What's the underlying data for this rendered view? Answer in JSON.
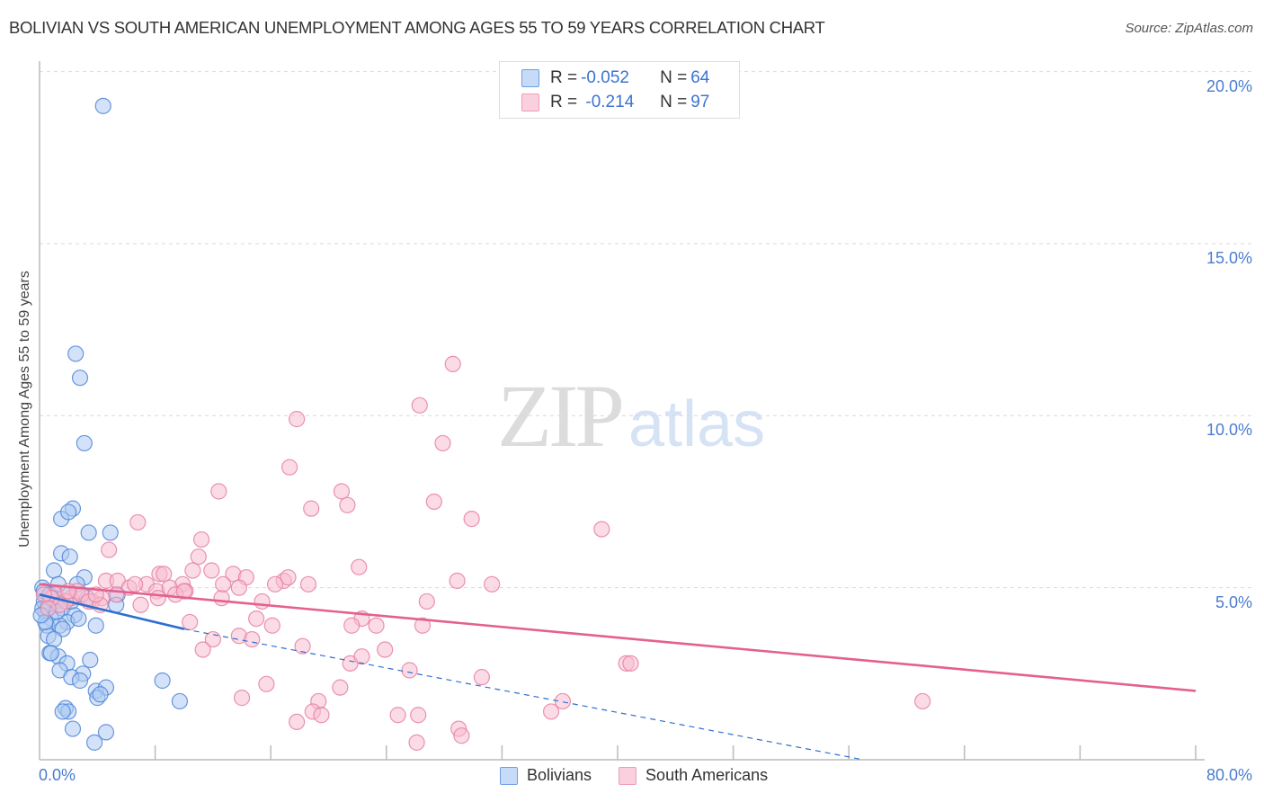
{
  "header": {
    "title": "BOLIVIAN VS SOUTH AMERICAN UNEMPLOYMENT AMONG AGES 55 TO 59 YEARS CORRELATION CHART",
    "source": "Source: ZipAtlas.com"
  },
  "watermark": {
    "zip": "ZIP",
    "atlas": "atlas"
  },
  "legend_top": {
    "rows": [
      {
        "r_label": "R = ",
        "r_value": "-0.052",
        "n_label": "N = ",
        "n_value": "64",
        "color": "#aecbf2"
      },
      {
        "r_label": "R = ",
        "r_value": " -0.214",
        "n_label": "N = ",
        "n_value": "97",
        "color": "#f7bed0"
      }
    ]
  },
  "legend_bottom": [
    {
      "label": "Bolivians",
      "color": "#aecbf2"
    },
    {
      "label": "South Americans",
      "color": "#f7bed0"
    }
  ],
  "axes": {
    "ylabel": "Unemployment Among Ages 55 to 59 years",
    "yticks": [
      "20.0%",
      "15.0%",
      "10.0%",
      "5.0%"
    ],
    "xticks": [
      "0.0%",
      "80.0%"
    ]
  },
  "colors": {
    "blue_fill": "#aecbf2",
    "blue_stroke": "#4f86d8",
    "blue_line": "#2f6fd0",
    "pink_fill": "#f7bed0",
    "pink_stroke": "#e680a3",
    "pink_line": "#e4608e",
    "tick_label": "#4a7cd1"
  },
  "chart_data": {
    "type": "scatter",
    "title": "BOLIVIAN VS SOUTH AMERICAN UNEMPLOYMENT AMONG AGES 55 TO 59 YEARS CORRELATION CHART",
    "xlabel": "",
    "ylabel": "Unemployment Among Ages 55 to 59 years",
    "xlim": [
      0,
      80
    ],
    "ylim": [
      0,
      20.5
    ],
    "x_tick_labels": [
      "0.0%",
      "80.0%"
    ],
    "y_tick_labels": [
      "5.0%",
      "10.0%",
      "15.0%",
      "20.0%"
    ],
    "grid": "horizontal dashed at 5, 10, 15, 20",
    "legend_position": "bottom-center; stats box top-center",
    "series": [
      {
        "name": "Bolivians",
        "R": -0.052,
        "N": 64,
        "trend": {
          "x0": 0,
          "y0": 4.8,
          "x1": 10,
          "y1": 3.8,
          "dashed_to": {
            "x": 57,
            "y": 0
          }
        },
        "points": [
          [
            4.4,
            19.0
          ],
          [
            2.5,
            11.8
          ],
          [
            2.8,
            11.1
          ],
          [
            3.1,
            9.2
          ],
          [
            2.3,
            7.3
          ],
          [
            1.5,
            7.0
          ],
          [
            2.0,
            7.2
          ],
          [
            3.4,
            6.6
          ],
          [
            4.9,
            6.6
          ],
          [
            1.5,
            6.0
          ],
          [
            2.1,
            5.9
          ],
          [
            1.0,
            5.5
          ],
          [
            3.1,
            5.3
          ],
          [
            0.2,
            5.0
          ],
          [
            2.6,
            5.1
          ],
          [
            5.4,
            4.8
          ],
          [
            0.3,
            4.6
          ],
          [
            0.6,
            4.5
          ],
          [
            1.1,
            4.6
          ],
          [
            1.6,
            4.4
          ],
          [
            2.4,
            4.2
          ],
          [
            0.4,
            4.3
          ],
          [
            0.8,
            4.1
          ],
          [
            1.9,
            4.0
          ],
          [
            2.7,
            4.1
          ],
          [
            0.2,
            4.4
          ],
          [
            5.3,
            4.5
          ],
          [
            0.5,
            3.9
          ],
          [
            1.4,
            3.9
          ],
          [
            1.6,
            3.8
          ],
          [
            3.9,
            3.9
          ],
          [
            0.6,
            3.6
          ],
          [
            1.0,
            3.5
          ],
          [
            0.7,
            3.1
          ],
          [
            1.3,
            3.0
          ],
          [
            0.8,
            3.1
          ],
          [
            1.9,
            2.8
          ],
          [
            3.5,
            2.9
          ],
          [
            1.4,
            2.6
          ],
          [
            3.0,
            2.5
          ],
          [
            2.2,
            2.4
          ],
          [
            2.8,
            2.3
          ],
          [
            8.5,
            2.3
          ],
          [
            3.9,
            2.0
          ],
          [
            4.6,
            2.1
          ],
          [
            4.0,
            1.8
          ],
          [
            4.2,
            1.9
          ],
          [
            1.8,
            1.5
          ],
          [
            2.0,
            1.4
          ],
          [
            1.6,
            1.4
          ],
          [
            9.7,
            1.7
          ],
          [
            2.3,
            0.9
          ],
          [
            4.6,
            0.8
          ],
          [
            3.8,
            0.5
          ],
          [
            0.3,
            4.9
          ],
          [
            0.9,
            4.7
          ],
          [
            1.2,
            4.3
          ],
          [
            0.4,
            4.0
          ],
          [
            2.2,
            4.6
          ],
          [
            1.7,
            4.8
          ],
          [
            0.1,
            4.2
          ],
          [
            0.7,
            4.8
          ],
          [
            1.3,
            5.1
          ],
          [
            3.3,
            4.7
          ]
        ]
      },
      {
        "name": "South Americans",
        "R": -0.214,
        "N": 97,
        "trend": {
          "x0": 0,
          "y0": 5.1,
          "x1": 80,
          "y1": 2.0
        },
        "points": [
          [
            28.6,
            11.5
          ],
          [
            26.3,
            10.3
          ],
          [
            17.8,
            9.9
          ],
          [
            27.9,
            9.2
          ],
          [
            17.3,
            8.5
          ],
          [
            12.4,
            7.8
          ],
          [
            20.9,
            7.8
          ],
          [
            27.3,
            7.5
          ],
          [
            18.8,
            7.3
          ],
          [
            21.3,
            7.4
          ],
          [
            29.9,
            7.0
          ],
          [
            6.8,
            6.9
          ],
          [
            38.9,
            6.7
          ],
          [
            11.2,
            6.4
          ],
          [
            4.8,
            6.1
          ],
          [
            11.0,
            5.9
          ],
          [
            22.1,
            5.6
          ],
          [
            11.9,
            5.5
          ],
          [
            8.3,
            5.4
          ],
          [
            8.6,
            5.4
          ],
          [
            10.6,
            5.5
          ],
          [
            4.6,
            5.2
          ],
          [
            5.4,
            5.2
          ],
          [
            7.4,
            5.1
          ],
          [
            9.9,
            5.1
          ],
          [
            13.4,
            5.4
          ],
          [
            14.3,
            5.3
          ],
          [
            16.9,
            5.2
          ],
          [
            17.2,
            5.3
          ],
          [
            18.6,
            5.1
          ],
          [
            28.9,
            5.2
          ],
          [
            31.3,
            5.1
          ],
          [
            6.2,
            5.0
          ],
          [
            8.1,
            4.9
          ],
          [
            9.0,
            5.0
          ],
          [
            10.1,
            4.9
          ],
          [
            13.8,
            5.0
          ],
          [
            16.3,
            5.1
          ],
          [
            12.6,
            4.7
          ],
          [
            15.4,
            4.6
          ],
          [
            5.3,
            4.8
          ],
          [
            4.3,
            4.7
          ],
          [
            3.6,
            4.6
          ],
          [
            2.2,
            4.7
          ],
          [
            1.1,
            4.8
          ],
          [
            1.8,
            4.6
          ],
          [
            2.6,
            4.9
          ],
          [
            0.8,
            4.7
          ],
          [
            0.3,
            4.8
          ],
          [
            1.4,
            4.5
          ],
          [
            2.9,
            4.8
          ],
          [
            3.4,
            4.6
          ],
          [
            4.2,
            4.5
          ],
          [
            7.0,
            4.5
          ],
          [
            8.2,
            4.7
          ],
          [
            9.4,
            4.8
          ],
          [
            26.8,
            4.6
          ],
          [
            10.4,
            4.0
          ],
          [
            15.0,
            4.1
          ],
          [
            16.1,
            3.9
          ],
          [
            22.3,
            4.1
          ],
          [
            21.6,
            3.9
          ],
          [
            23.3,
            3.9
          ],
          [
            26.5,
            3.9
          ],
          [
            12.0,
            3.5
          ],
          [
            13.8,
            3.6
          ],
          [
            14.7,
            3.5
          ],
          [
            11.3,
            3.2
          ],
          [
            18.2,
            3.3
          ],
          [
            23.9,
            3.2
          ],
          [
            21.5,
            2.8
          ],
          [
            22.3,
            3.0
          ],
          [
            25.6,
            2.6
          ],
          [
            30.6,
            2.4
          ],
          [
            40.6,
            2.8
          ],
          [
            40.9,
            2.8
          ],
          [
            14.0,
            1.8
          ],
          [
            15.7,
            2.2
          ],
          [
            20.8,
            2.1
          ],
          [
            19.3,
            1.7
          ],
          [
            18.9,
            1.4
          ],
          [
            19.5,
            1.3
          ],
          [
            24.8,
            1.3
          ],
          [
            26.2,
            1.3
          ],
          [
            35.4,
            1.4
          ],
          [
            36.2,
            1.7
          ],
          [
            17.8,
            1.1
          ],
          [
            29.0,
            0.9
          ],
          [
            29.2,
            0.7
          ],
          [
            26.1,
            0.5
          ],
          [
            61.1,
            1.7
          ],
          [
            10.0,
            4.9
          ],
          [
            12.7,
            5.1
          ],
          [
            6.6,
            5.1
          ],
          [
            3.9,
            4.8
          ],
          [
            0.6,
            4.4
          ],
          [
            2.0,
            4.9
          ]
        ]
      }
    ]
  }
}
